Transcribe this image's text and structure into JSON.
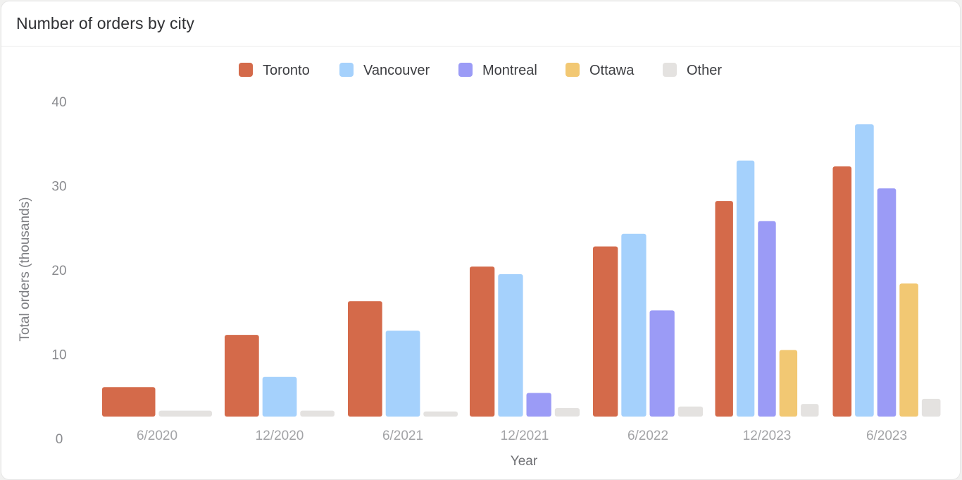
{
  "card": {
    "title": "Number of orders by city"
  },
  "chart_data": {
    "type": "bar",
    "title": "Number of orders by city",
    "xlabel": "Year",
    "ylabel": "Total orders (thousands)",
    "categories": [
      "6/2020",
      "12/2020",
      "6/2021",
      "12/2021",
      "6/2022",
      "12/2023",
      "6/2023"
    ],
    "ylim": [
      0,
      40
    ],
    "yticks": [
      0,
      10,
      20,
      30,
      40
    ],
    "grid": false,
    "legend_position": "top",
    "series": [
      {
        "name": "Toronto",
        "color": "#d46a4a",
        "values": [
          3.5,
          9.7,
          13.7,
          17.8,
          20.2,
          25.6,
          29.7
        ]
      },
      {
        "name": "Vancouver",
        "color": "#a5d1fc",
        "values": [
          null,
          4.7,
          10.2,
          16.9,
          21.7,
          30.4,
          34.7
        ]
      },
      {
        "name": "Montreal",
        "color": "#9b9bf6",
        "values": [
          null,
          null,
          null,
          2.8,
          12.6,
          23.2,
          27.1
        ]
      },
      {
        "name": "Ottawa",
        "color": "#f2c873",
        "values": [
          null,
          null,
          null,
          null,
          null,
          7.9,
          15.8
        ]
      },
      {
        "name": "Other",
        "color": "#e4e2e0",
        "values": [
          0.7,
          0.7,
          0.6,
          1.0,
          1.2,
          1.5,
          2.1
        ]
      }
    ]
  }
}
